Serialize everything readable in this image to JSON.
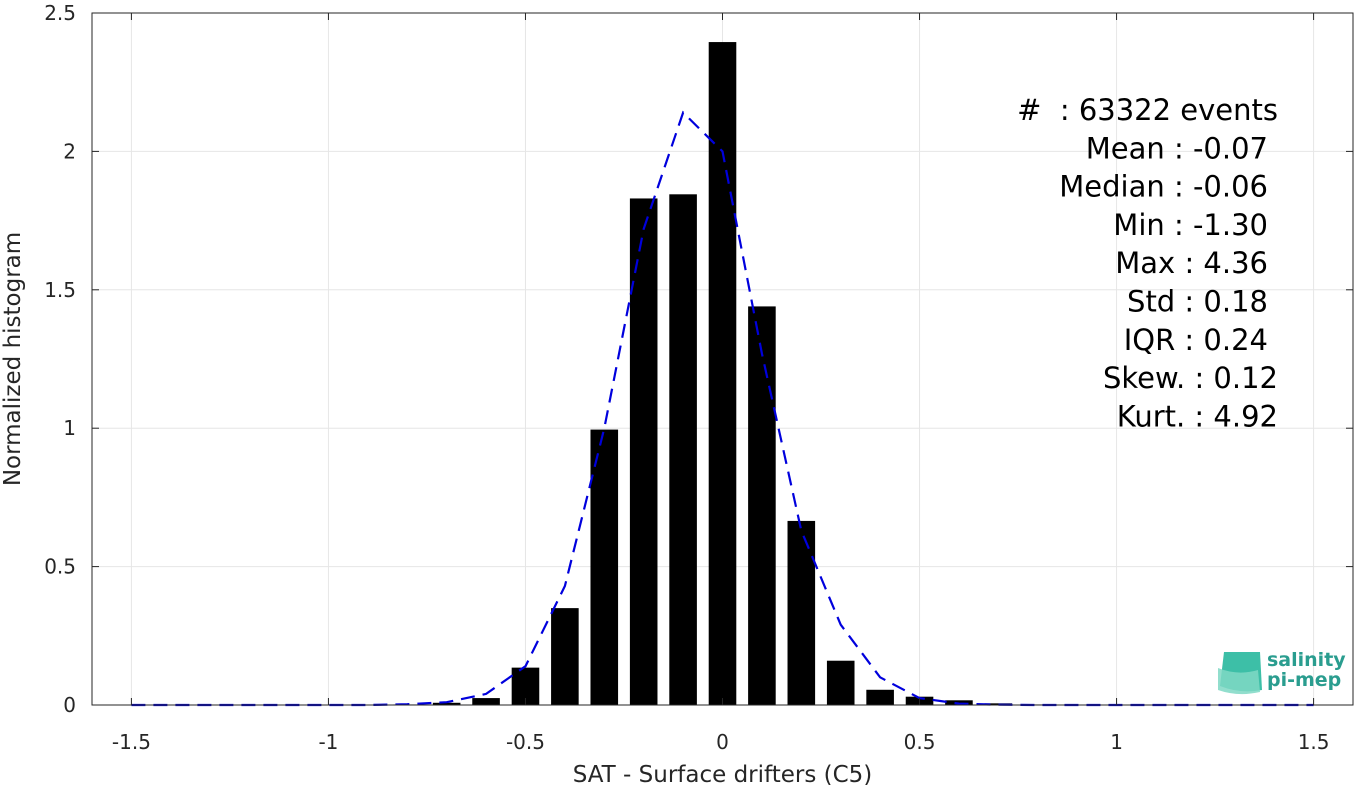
{
  "chart_data": {
    "type": "bar",
    "xlabel": "SAT - Surface drifters (C5)",
    "ylabel": "Normalized histogram",
    "xlim": [
      -1.6,
      1.6
    ],
    "ylim": [
      0,
      2.5
    ],
    "xticks": [
      -1.5,
      -1,
      -0.5,
      0,
      0.5,
      1,
      1.5
    ],
    "xtick_labels": [
      "-1.5",
      "-1",
      "-0.5",
      "0",
      "0.5",
      "1",
      "1.5"
    ],
    "yticks": [
      0,
      0.5,
      1,
      1.5,
      2,
      2.5
    ],
    "ytick_labels": [
      "0",
      "0.5",
      "1",
      "1.5",
      "2",
      "2.5"
    ],
    "grid": true,
    "bar_width": 0.07,
    "bars": {
      "color": "#000000",
      "x": [
        -1.5,
        -1.4,
        -1.3,
        -1.2,
        -1.1,
        -1.0,
        -0.9,
        -0.8,
        -0.7,
        -0.6,
        -0.5,
        -0.4,
        -0.3,
        -0.2,
        -0.1,
        0.0,
        0.1,
        0.2,
        0.3,
        0.4,
        0.5,
        0.6,
        0.7,
        0.8,
        0.9,
        1.0,
        1.1,
        1.2,
        1.3,
        1.4,
        1.5
      ],
      "values": [
        0.0005,
        0.0005,
        0.0005,
        0.0005,
        0.0005,
        0.0005,
        0.001,
        0.002,
        0.008,
        0.025,
        0.135,
        0.35,
        0.995,
        1.83,
        1.845,
        2.395,
        1.44,
        0.665,
        0.16,
        0.055,
        0.03,
        0.017,
        0.006,
        0.002,
        0.001,
        0.0005,
        0.0005,
        0.0005,
        0.0005,
        0.0005,
        0.0005
      ]
    },
    "fit_curve": {
      "color": "#0000dd",
      "style": "dashed",
      "x": [
        -1.5,
        -1.4,
        -1.3,
        -1.2,
        -1.1,
        -1.0,
        -0.9,
        -0.8,
        -0.7,
        -0.6,
        -0.5,
        -0.4,
        -0.3,
        -0.2,
        -0.1,
        0.0,
        0.1,
        0.2,
        0.3,
        0.4,
        0.5,
        0.6,
        0.7,
        0.8,
        0.9,
        1.0,
        1.1,
        1.2,
        1.3,
        1.4,
        1.5
      ],
      "values": [
        0,
        0,
        0,
        0,
        0,
        0,
        0,
        0.003,
        0.01,
        0.04,
        0.14,
        0.43,
        1.0,
        1.72,
        2.14,
        2.0,
        1.27,
        0.63,
        0.29,
        0.1,
        0.025,
        0.005,
        0.001,
        0,
        0,
        0,
        0,
        0,
        0,
        0,
        0
      ]
    },
    "stats": [
      "#  : 63322 events",
      "Mean : -0.07",
      "Median : -0.06",
      "Min : -1.30",
      "Max : 4.36",
      "Std : 0.18",
      "IQR : 0.24",
      "Skew. : 0.12",
      "Kurt. : 4.92"
    ]
  },
  "logo": {
    "line1": "salinity",
    "line2": "pi-mep"
  }
}
